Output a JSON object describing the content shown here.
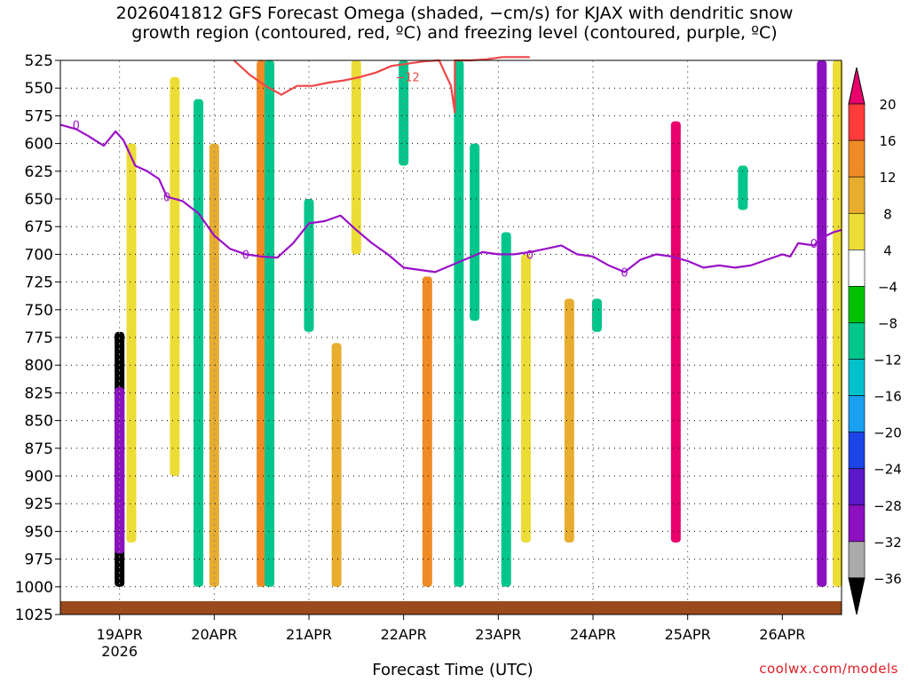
{
  "title": {
    "line1": "2026041812 GFS Forecast Omega (shaded, −cm/s) for KJAX with dendritic snow",
    "line2": "growth region (contoured, red, ºC) and freezing level (contoured, purple, ºC)"
  },
  "credit": "coolwx.com/models",
  "chart_data": {
    "type": "heatmap",
    "title": "2026041812 GFS Forecast Omega (shaded, −cm/s) for KJAX with dendritic snow growth region (contoured, red, ºC) and freezing level (contoured, purple, ºC)",
    "xlabel": "Forecast Time (UTC)",
    "ylabel": "",
    "x_ticks": [
      "19APR",
      "20APR",
      "21APR",
      "22APR",
      "23APR",
      "24APR",
      "25APR",
      "26APR"
    ],
    "x_tick_sub": "2026",
    "y_ticks": [
      525,
      550,
      575,
      600,
      625,
      650,
      675,
      700,
      725,
      750,
      775,
      800,
      825,
      850,
      875,
      900,
      925,
      950,
      975,
      1000,
      1025
    ],
    "ylim": [
      1025,
      525
    ],
    "y_reversed": true,
    "xlim_hours": [
      -15,
      183
    ],
    "grid": true,
    "colorbar": {
      "labels": [
        "20",
        "16",
        "12",
        "8",
        "4",
        "−4",
        "−8",
        "−12",
        "−16",
        "−20",
        "−24",
        "−28",
        "−32",
        "−36"
      ],
      "colors": [
        "#e8006c",
        "#ff3b3b",
        "#f08a24",
        "#e8ad2e",
        "#ecdc36",
        "#ffffff",
        "#00c200",
        "#00c68c",
        "#00c0cc",
        "#1aa0f0",
        "#1c44e8",
        "#5a18c8",
        "#8c10c0",
        "#aaaaaa",
        "#000000"
      ]
    },
    "freezing_level": {
      "label": "0",
      "color": "#9a10c8",
      "hours": [
        -15,
        -11,
        -8,
        -4,
        -1,
        1,
        4,
        7,
        10,
        12,
        16,
        20,
        24,
        28,
        32,
        36,
        40,
        44,
        48,
        52,
        56,
        60,
        64,
        68,
        72,
        76,
        80,
        84,
        88,
        92,
        96,
        100,
        104,
        108,
        112,
        116,
        120,
        124,
        128,
        132,
        136,
        140,
        144,
        148,
        152,
        156,
        160,
        164,
        168,
        170,
        172,
        176,
        178,
        181,
        183
      ],
      "pressures": [
        583,
        587,
        593,
        602,
        589,
        597,
        620,
        625,
        632,
        648,
        652,
        663,
        683,
        695,
        700,
        702,
        703,
        690,
        672,
        670,
        665,
        678,
        690,
        700,
        712,
        714,
        716,
        710,
        704,
        698,
        700,
        700,
        698,
        695,
        692,
        700,
        702,
        710,
        716,
        705,
        700,
        702,
        706,
        712,
        710,
        712,
        710,
        705,
        700,
        702,
        690,
        692,
        685,
        680,
        678
      ]
    },
    "dgz_minus12": {
      "label": "−12",
      "color": "#f04646",
      "hours": [
        29,
        33,
        37,
        41,
        45,
        49,
        53,
        57,
        61,
        65,
        69,
        73,
        77,
        81,
        84,
        85,
        85,
        89,
        93,
        97,
        101,
        104
      ],
      "pressures": [
        525,
        538,
        548,
        556,
        548,
        548,
        545,
        543,
        540,
        536,
        530,
        528,
        526,
        525,
        548,
        572,
        525,
        525,
        524,
        522,
        522,
        522
      ]
    },
    "omega_cells": [
      {
        "hour": 0,
        "p_top": 770,
        "p_bot": 1000,
        "value": -36
      },
      {
        "hour": 0,
        "p_top": 820,
        "p_bot": 970,
        "value": -28
      },
      {
        "hour": 3,
        "p_top": 600,
        "p_bot": 960,
        "value": 6
      },
      {
        "hour": 14,
        "p_top": 540,
        "p_bot": 900,
        "value": 6
      },
      {
        "hour": 20,
        "p_top": 560,
        "p_bot": 1000,
        "value": -8
      },
      {
        "hour": 24,
        "p_top": 600,
        "p_bot": 1000,
        "value": 9
      },
      {
        "hour": 36,
        "p_top": 525,
        "p_bot": 1000,
        "value": 12
      },
      {
        "hour": 38,
        "p_top": 525,
        "p_bot": 1000,
        "value": -8
      },
      {
        "hour": 48,
        "p_top": 650,
        "p_bot": 770,
        "value": -8
      },
      {
        "hour": 55,
        "p_top": 780,
        "p_bot": 1000,
        "value": 10
      },
      {
        "hour": 60,
        "p_top": 525,
        "p_bot": 700,
        "value": 6
      },
      {
        "hour": 72,
        "p_top": 525,
        "p_bot": 620,
        "value": -8
      },
      {
        "hour": 78,
        "p_top": 720,
        "p_bot": 1000,
        "value": 12
      },
      {
        "hour": 86,
        "p_top": 525,
        "p_bot": 1000,
        "value": -8
      },
      {
        "hour": 90,
        "p_top": 600,
        "p_bot": 760,
        "value": -8
      },
      {
        "hour": 98,
        "p_top": 680,
        "p_bot": 1000,
        "value": -8
      },
      {
        "hour": 103,
        "p_top": 700,
        "p_bot": 960,
        "value": 6
      },
      {
        "hour": 114,
        "p_top": 740,
        "p_bot": 960,
        "value": 10
      },
      {
        "hour": 121,
        "p_top": 740,
        "p_bot": 770,
        "value": -8
      },
      {
        "hour": 141,
        "p_top": 580,
        "p_bot": 960,
        "value": 20
      },
      {
        "hour": 158,
        "p_top": 620,
        "p_bot": 660,
        "value": -8
      },
      {
        "hour": 178,
        "p_top": 525,
        "p_bot": 1000,
        "value": -28
      },
      {
        "hour": 182,
        "p_top": 525,
        "p_bot": 1000,
        "value": 6
      }
    ]
  }
}
